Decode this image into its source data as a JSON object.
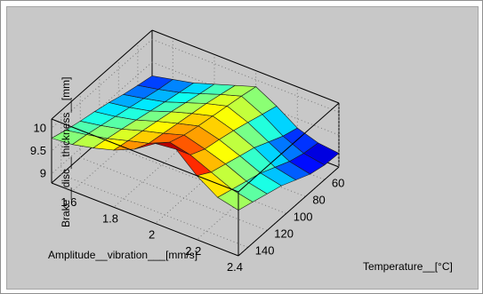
{
  "colors": {
    "figure_bg": "#c8c8c8",
    "box_line": "#000000",
    "grid_line": "#7a7a7a",
    "mesh_line": "#1a1a1a"
  },
  "chart_data": {
    "type": "surface",
    "title": "",
    "xlabel": "Amplitude__vibration___[mm/s]",
    "ylabel": "Temperature__[°C]",
    "zlabel": "Brake__disc__thickness__[mm]",
    "xlim": [
      1.5,
      2.4
    ],
    "ylim": [
      45,
      150
    ],
    "zlim": [
      8.8,
      10.2
    ],
    "xticks": [
      "1.6",
      "1.8",
      "2",
      "2.2",
      "2.4"
    ],
    "yticks": [
      "60",
      "80",
      "100",
      "120",
      "140"
    ],
    "zticks": [
      "9",
      "9.5",
      "10"
    ],
    "colormap": "jet",
    "grid": true,
    "x_grid": [
      1.5,
      1.6,
      1.7,
      1.8,
      1.9,
      2.0,
      2.1,
      2.2,
      2.3,
      2.4
    ],
    "y_grid": [
      45,
      60,
      75,
      90,
      105,
      120,
      135,
      150
    ],
    "z": [
      [
        9.2,
        9.27,
        9.35,
        9.45,
        9.53,
        9.6,
        9.68,
        9.78
      ],
      [
        9.3,
        9.36,
        9.44,
        9.52,
        9.6,
        9.68,
        9.76,
        9.82
      ],
      [
        9.4,
        9.47,
        9.54,
        9.62,
        9.7,
        9.78,
        9.85,
        9.92
      ],
      [
        9.55,
        9.62,
        9.7,
        9.78,
        9.85,
        9.92,
        9.98,
        10.05
      ],
      [
        9.7,
        9.78,
        9.86,
        9.92,
        9.98,
        10.04,
        10.1,
        10.25
      ],
      [
        9.85,
        9.92,
        9.98,
        10.04,
        10.1,
        10.18,
        10.3,
        10.55
      ],
      [
        9.6,
        9.7,
        9.8,
        9.9,
        9.98,
        10.05,
        10.2,
        10.6
      ],
      [
        9.3,
        9.4,
        9.55,
        9.7,
        9.8,
        9.9,
        10.0,
        10.2
      ],
      [
        9.15,
        9.2,
        9.3,
        9.45,
        9.6,
        9.7,
        9.8,
        9.9
      ],
      [
        9.1,
        9.12,
        9.2,
        9.35,
        9.5,
        9.6,
        9.7,
        9.8
      ]
    ]
  }
}
